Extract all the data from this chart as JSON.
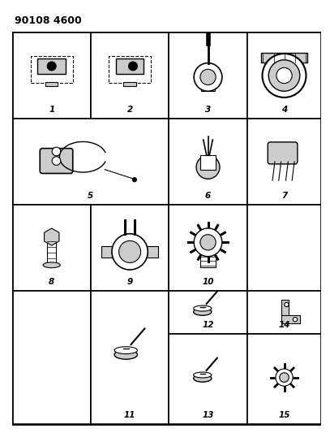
{
  "title": "90108 4600",
  "title_fontsize": 9,
  "title_fontweight": "bold",
  "bg_color": "#ffffff",
  "line_color": "#000000",
  "fig_width": 4.07,
  "fig_height": 5.33,
  "dpi": 100
}
